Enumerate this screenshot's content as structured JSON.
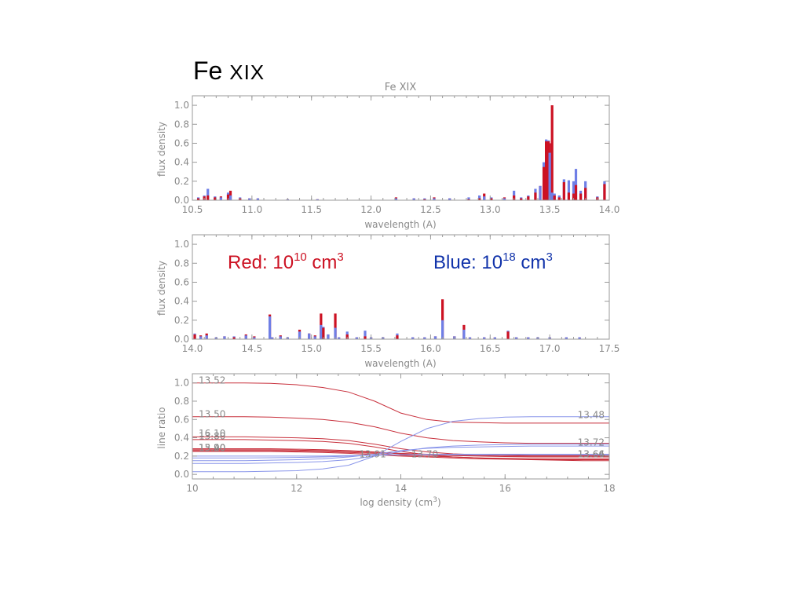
{
  "slide": {
    "title_main": "Fe ",
    "title_ion": "XIX"
  },
  "legend": {
    "red": {
      "prefix": "Red: 10",
      "exp": "10",
      "unit": " cm",
      "unit_exp": "3",
      "color": "#cc1122"
    },
    "blue": {
      "prefix": "Blue: 10",
      "exp": "18",
      "unit": " cm",
      "unit_exp": "3",
      "color": "#1133aa"
    }
  },
  "colors": {
    "red": "#cc1122",
    "blue": "#6f7fe6",
    "axis": "#9a9a9a",
    "text": "#8a8a8a"
  },
  "chart_data": [
    {
      "type": "bar",
      "title": "Fe XIX",
      "xlabel": "wavelength (A)",
      "ylabel": "flux density",
      "xlim": [
        10.5,
        14.0
      ],
      "ylim": [
        0,
        1.1
      ],
      "xticks": [
        "10.5",
        "11.0",
        "11.5",
        "12.0",
        "12.5",
        "13.0",
        "13.5",
        "14.0"
      ],
      "yticks": [
        "0.0",
        "0.2",
        "0.4",
        "0.6",
        "0.8",
        "1.0"
      ],
      "series": [
        {
          "name": "Red: 10^10 cm^3",
          "x": [
            10.55,
            10.6,
            10.63,
            10.69,
            10.74,
            10.8,
            10.82,
            10.9,
            10.98,
            11.05,
            11.3,
            11.55,
            12.21,
            12.36,
            12.45,
            12.53,
            12.66,
            12.82,
            12.91,
            12.95,
            13.01,
            13.12,
            13.2,
            13.26,
            13.32,
            13.38,
            13.42,
            13.45,
            13.47,
            13.49,
            13.5,
            13.52,
            13.54,
            13.58,
            13.62,
            13.66,
            13.7,
            13.72,
            13.76,
            13.8,
            13.9,
            13.96
          ],
          "values": [
            0.02,
            0.04,
            0.05,
            0.03,
            0.04,
            0.06,
            0.1,
            0.02,
            0.02,
            0.02,
            0.01,
            0.01,
            0.03,
            0.02,
            0.01,
            0.03,
            0.02,
            0.01,
            0.02,
            0.07,
            0.02,
            0.03,
            0.05,
            0.02,
            0.04,
            0.08,
            0.15,
            0.35,
            0.62,
            0.62,
            0.6,
            1.0,
            0.05,
            0.03,
            0.19,
            0.08,
            0.07,
            0.16,
            0.07,
            0.13,
            0.03,
            0.17
          ]
        },
        {
          "name": "Blue: 10^18 cm^3",
          "x": [
            10.55,
            10.6,
            10.63,
            10.69,
            10.74,
            10.8,
            10.82,
            10.9,
            10.98,
            11.05,
            11.3,
            11.55,
            12.21,
            12.36,
            12.45,
            12.53,
            12.66,
            12.82,
            12.91,
            12.95,
            13.01,
            13.12,
            13.2,
            13.26,
            13.32,
            13.38,
            13.42,
            13.45,
            13.47,
            13.49,
            13.5,
            13.52,
            13.54,
            13.58,
            13.62,
            13.66,
            13.7,
            13.72,
            13.76,
            13.8,
            13.9,
            13.96
          ],
          "values": [
            0.03,
            0.05,
            0.12,
            0.04,
            0.03,
            0.08,
            0.05,
            0.03,
            0.02,
            0.02,
            0.01,
            0.01,
            0.02,
            0.02,
            0.02,
            0.02,
            0.02,
            0.03,
            0.05,
            0.04,
            0.03,
            0.02,
            0.1,
            0.03,
            0.05,
            0.12,
            0.15,
            0.4,
            0.64,
            0.63,
            0.5,
            0.08,
            0.07,
            0.05,
            0.22,
            0.21,
            0.2,
            0.33,
            0.1,
            0.2,
            0.04,
            0.2
          ]
        }
      ]
    },
    {
      "type": "bar",
      "title": "",
      "xlabel": "wavelength (A)",
      "ylabel": "flux density",
      "xlim": [
        14.0,
        17.5
      ],
      "ylim": [
        0,
        1.1
      ],
      "xticks": [
        "14.0",
        "14.5",
        "15.0",
        "15.5",
        "16.0",
        "16.5",
        "17.0",
        "17.5"
      ],
      "yticks": [
        "0.0",
        "0.2",
        "0.4",
        "0.6",
        "0.8",
        "1.0"
      ],
      "series": [
        {
          "name": "Red: 10^10 cm^3",
          "x": [
            14.02,
            14.07,
            14.12,
            14.2,
            14.27,
            14.35,
            14.45,
            14.52,
            14.65,
            14.67,
            14.74,
            14.8,
            14.9,
            14.98,
            15.03,
            15.08,
            15.1,
            15.14,
            15.2,
            15.23,
            15.3,
            15.38,
            15.45,
            15.5,
            15.6,
            15.72,
            15.85,
            15.95,
            16.04,
            16.1,
            16.2,
            16.28,
            16.33,
            16.45,
            16.54,
            16.65,
            16.72,
            16.82,
            16.9,
            17.0,
            17.14,
            17.25
          ],
          "values": [
            0.05,
            0.04,
            0.06,
            0.02,
            0.03,
            0.02,
            0.05,
            0.03,
            0.26,
            0.02,
            0.04,
            0.02,
            0.1,
            0.06,
            0.04,
            0.27,
            0.12,
            0.05,
            0.27,
            0.02,
            0.05,
            0.02,
            0.03,
            0.02,
            0.02,
            0.04,
            0.02,
            0.02,
            0.03,
            0.42,
            0.03,
            0.15,
            0.02,
            0.02,
            0.02,
            0.08,
            0.02,
            0.02,
            0.02,
            0.02,
            0.02,
            0.02
          ]
        },
        {
          "name": "Blue: 10^18 cm^3",
          "x": [
            14.02,
            14.07,
            14.12,
            14.2,
            14.27,
            14.35,
            14.45,
            14.52,
            14.65,
            14.67,
            14.74,
            14.8,
            14.9,
            14.98,
            15.03,
            15.08,
            15.1,
            15.14,
            15.2,
            15.23,
            15.3,
            15.38,
            15.45,
            15.5,
            15.6,
            15.72,
            15.85,
            15.95,
            16.04,
            16.1,
            16.2,
            16.28,
            16.33,
            16.45,
            16.54,
            16.65,
            16.72,
            16.82,
            16.9,
            17.0,
            17.14,
            17.25
          ],
          "values": [
            0.06,
            0.03,
            0.04,
            0.02,
            0.03,
            0.03,
            0.04,
            0.02,
            0.24,
            0.02,
            0.03,
            0.02,
            0.08,
            0.06,
            0.03,
            0.15,
            0.13,
            0.05,
            0.12,
            0.02,
            0.08,
            0.02,
            0.09,
            0.02,
            0.02,
            0.06,
            0.02,
            0.02,
            0.03,
            0.2,
            0.03,
            0.1,
            0.02,
            0.02,
            0.02,
            0.09,
            0.02,
            0.02,
            0.02,
            0.02,
            0.02,
            0.02
          ]
        }
      ]
    },
    {
      "type": "line",
      "title": "",
      "xlabel": "log density (cm",
      "xlabel_exp": "3",
      "xlabel_tail": ")",
      "ylabel": "line ratio",
      "xlim": [
        10,
        18
      ],
      "ylim": [
        -0.05,
        1.1
      ],
      "xticks": [
        "10",
        "12",
        "14",
        "16",
        "18"
      ],
      "yticks": [
        "0.0",
        "0.2",
        "0.4",
        "0.6",
        "0.8",
        "1.0"
      ],
      "x": [
        10,
        10.5,
        11,
        11.5,
        12,
        12.5,
        13,
        13.5,
        14,
        14.5,
        15,
        15.5,
        16,
        16.5,
        17,
        17.5,
        18
      ],
      "series": [
        {
          "color": "red",
          "values": [
            1.0,
            1.0,
            1.0,
            0.995,
            0.98,
            0.95,
            0.9,
            0.8,
            0.67,
            0.6,
            0.57,
            0.565,
            0.56,
            0.56,
            0.56,
            0.56,
            0.56
          ]
        },
        {
          "color": "red",
          "values": [
            0.63,
            0.63,
            0.63,
            0.625,
            0.615,
            0.6,
            0.57,
            0.52,
            0.45,
            0.4,
            0.37,
            0.355,
            0.345,
            0.34,
            0.34,
            0.34,
            0.34
          ]
        },
        {
          "color": "red",
          "values": [
            0.41,
            0.41,
            0.41,
            0.405,
            0.4,
            0.39,
            0.37,
            0.33,
            0.28,
            0.245,
            0.225,
            0.215,
            0.21,
            0.205,
            0.205,
            0.205,
            0.205
          ]
        },
        {
          "color": "red",
          "values": [
            0.38,
            0.38,
            0.38,
            0.375,
            0.37,
            0.36,
            0.34,
            0.3,
            0.25,
            0.215,
            0.19,
            0.18,
            0.17,
            0.165,
            0.16,
            0.16,
            0.16
          ]
        },
        {
          "color": "red",
          "values": [
            0.28,
            0.28,
            0.28,
            0.28,
            0.275,
            0.27,
            0.26,
            0.245,
            0.23,
            0.22,
            0.21,
            0.205,
            0.2,
            0.2,
            0.2,
            0.2,
            0.2
          ]
        },
        {
          "color": "red",
          "values": [
            0.27,
            0.27,
            0.27,
            0.27,
            0.265,
            0.26,
            0.25,
            0.24,
            0.225,
            0.215,
            0.205,
            0.2,
            0.195,
            0.19,
            0.19,
            0.19,
            0.19
          ]
        },
        {
          "color": "red",
          "values": [
            0.26,
            0.26,
            0.26,
            0.26,
            0.255,
            0.25,
            0.24,
            0.23,
            0.21,
            0.2,
            0.19,
            0.18,
            0.175,
            0.17,
            0.17,
            0.17,
            0.17
          ]
        },
        {
          "color": "red",
          "values": [
            0.25,
            0.25,
            0.25,
            0.25,
            0.245,
            0.24,
            0.23,
            0.215,
            0.2,
            0.19,
            0.18,
            0.17,
            0.165,
            0.16,
            0.155,
            0.15,
            0.15
          ]
        },
        {
          "color": "blue",
          "values": [
            0.03,
            0.03,
            0.03,
            0.035,
            0.04,
            0.06,
            0.1,
            0.2,
            0.36,
            0.5,
            0.58,
            0.61,
            0.625,
            0.63,
            0.63,
            0.63,
            0.63
          ]
        },
        {
          "color": "blue",
          "values": [
            0.12,
            0.12,
            0.12,
            0.125,
            0.13,
            0.14,
            0.16,
            0.2,
            0.25,
            0.29,
            0.31,
            0.32,
            0.325,
            0.33,
            0.33,
            0.33,
            0.33
          ]
        },
        {
          "color": "blue",
          "values": [
            0.15,
            0.15,
            0.15,
            0.155,
            0.16,
            0.17,
            0.19,
            0.22,
            0.26,
            0.285,
            0.295,
            0.3,
            0.305,
            0.31,
            0.31,
            0.31,
            0.31
          ]
        },
        {
          "color": "blue",
          "values": [
            0.18,
            0.18,
            0.18,
            0.182,
            0.185,
            0.19,
            0.2,
            0.21,
            0.215,
            0.218,
            0.22,
            0.22,
            0.22,
            0.22,
            0.22,
            0.22,
            0.22
          ]
        },
        {
          "color": "blue",
          "values": [
            0.2,
            0.2,
            0.2,
            0.2,
            0.2,
            0.2,
            0.205,
            0.21,
            0.215,
            0.215,
            0.215,
            0.215,
            0.215,
            0.215,
            0.215,
            0.215,
            0.215
          ]
        }
      ],
      "curve_labels_left": [
        {
          "text": "13.52",
          "y": 1.02
        },
        {
          "text": "13.50",
          "y": 0.65
        },
        {
          "text": "16.10",
          "y": 0.44
        },
        {
          "text": "13.80",
          "y": 0.41
        },
        {
          "text": "13.20",
          "y": 0.28
        },
        {
          "text": "15.40",
          "y": 0.28
        },
        {
          "text": "13.90",
          "y": 0.28
        }
      ],
      "curve_labels_mid": [
        {
          "text": "13.91",
          "x": 13.2,
          "y": 0.22
        },
        {
          "text": "13.70",
          "x": 14.2,
          "y": 0.22
        }
      ],
      "curve_labels_right": [
        {
          "text": "13.48",
          "y": 0.65
        },
        {
          "text": "13.72",
          "y": 0.35
        },
        {
          "text": "13.64",
          "y": 0.22
        },
        {
          "text": "13.66",
          "y": 0.22
        }
      ]
    }
  ]
}
